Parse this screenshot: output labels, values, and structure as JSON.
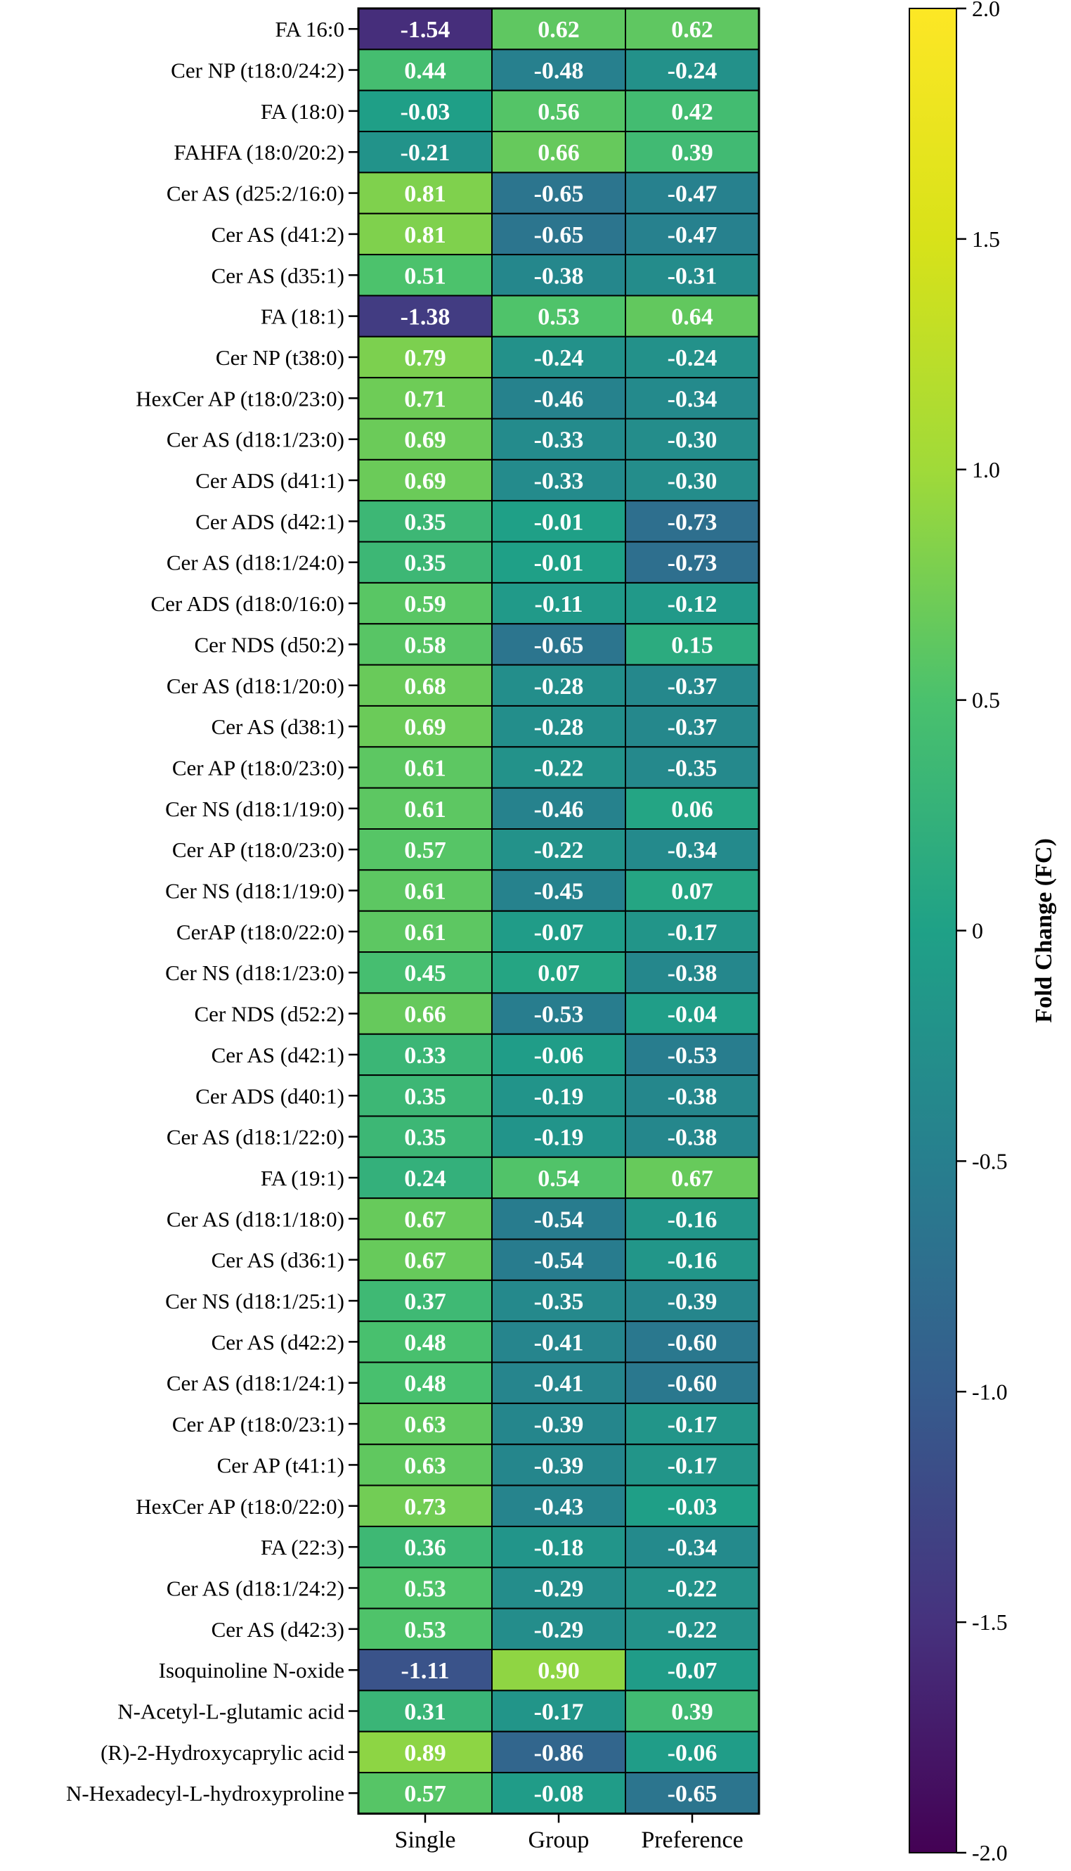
{
  "chart_data": {
    "type": "heatmap",
    "title": "",
    "columns": [
      "Single",
      "Group",
      "Preference"
    ],
    "rows": [
      "FA 16:0",
      "Cer NP (t18:0/24:2)",
      "FA (18:0)",
      "FAHFA (18:0/20:2)",
      "Cer AS (d25:2/16:0)",
      "Cer AS (d41:2)",
      "Cer AS (d35:1)",
      "FA (18:1)",
      "Cer NP (t38:0)",
      "HexCer AP (t18:0/23:0)",
      "Cer AS (d18:1/23:0)",
      "Cer ADS (d41:1)",
      "Cer ADS (d42:1)",
      "Cer AS (d18:1/24:0)",
      "Cer ADS (d18:0/16:0)",
      "Cer NDS (d50:2)",
      "Cer AS (d18:1/20:0)",
      "Cer AS (d38:1)",
      "Cer AP (t18:0/23:0)",
      "Cer NS (d18:1/19:0)",
      "Cer AP (t18:0/23:0)",
      "Cer NS (d18:1/19:0)",
      "CerAP (t18:0/22:0)",
      "Cer NS (d18:1/23:0)",
      "Cer NDS (d52:2)",
      "Cer AS (d42:1)",
      "Cer ADS (d40:1)",
      "Cer AS (d18:1/22:0)",
      "FA (19:1)",
      "Cer AS (d18:1/18:0)",
      "Cer AS (d36:1)",
      "Cer NS (d18:1/25:1)",
      "Cer AS (d42:2)",
      "Cer AS (d18:1/24:1)",
      "Cer AP (t18:0/23:1)",
      "Cer AP (t41:1)",
      "HexCer AP (t18:0/22:0)",
      "FA (22:3)",
      "Cer AS (d18:1/24:2)",
      "Cer AS (d42:3)",
      "Isoquinoline N-oxide",
      "N-Acetyl-L-glutamic acid",
      "(R)-2-Hydroxycaprylic acid",
      "N-Hexadecyl-L-hydroxyproline"
    ],
    "values": [
      [
        "-1.54",
        "0.62",
        "0.62"
      ],
      [
        "0.44",
        "-0.48",
        "-0.24"
      ],
      [
        "-0.03",
        "0.56",
        "0.42"
      ],
      [
        "-0.21",
        "0.66",
        "0.39"
      ],
      [
        "0.81",
        "-0.65",
        "-0.47"
      ],
      [
        "0.81",
        "-0.65",
        "-0.47"
      ],
      [
        "0.51",
        "-0.38",
        "-0.31"
      ],
      [
        "-1.38",
        "0.53",
        "0.64"
      ],
      [
        "0.79",
        "-0.24",
        "-0.24"
      ],
      [
        "0.71",
        "-0.46",
        "-0.34"
      ],
      [
        "0.69",
        "-0.33",
        "-0.30"
      ],
      [
        "0.69",
        "-0.33",
        "-0.30"
      ],
      [
        "0.35",
        "-0.01",
        "-0.73"
      ],
      [
        "0.35",
        "-0.01",
        "-0.73"
      ],
      [
        "0.59",
        "-0.11",
        "-0.12"
      ],
      [
        "0.58",
        "-0.65",
        "0.15"
      ],
      [
        "0.68",
        "-0.28",
        "-0.37"
      ],
      [
        "0.69",
        "-0.28",
        "-0.37"
      ],
      [
        "0.61",
        "-0.22",
        "-0.35"
      ],
      [
        "0.61",
        "-0.46",
        "0.06"
      ],
      [
        "0.57",
        "-0.22",
        "-0.34"
      ],
      [
        "0.61",
        "-0.45",
        "0.07"
      ],
      [
        "0.61",
        "-0.07",
        "-0.17"
      ],
      [
        "0.45",
        "0.07",
        "-0.38"
      ],
      [
        "0.66",
        "-0.53",
        "-0.04"
      ],
      [
        "0.33",
        "-0.06",
        "-0.53"
      ],
      [
        "0.35",
        "-0.19",
        "-0.38"
      ],
      [
        "0.35",
        "-0.19",
        "-0.38"
      ],
      [
        "0.24",
        "0.54",
        "0.67"
      ],
      [
        "0.67",
        "-0.54",
        "-0.16"
      ],
      [
        "0.67",
        "-0.54",
        "-0.16"
      ],
      [
        "0.37",
        "-0.35",
        "-0.39"
      ],
      [
        "0.48",
        "-0.41",
        "-0.60"
      ],
      [
        "0.48",
        "-0.41",
        "-0.60"
      ],
      [
        "0.63",
        "-0.39",
        "-0.17"
      ],
      [
        "0.63",
        "-0.39",
        "-0.17"
      ],
      [
        "0.73",
        "-0.43",
        "-0.03"
      ],
      [
        "0.36",
        "-0.18",
        "-0.34"
      ],
      [
        "0.53",
        "-0.29",
        "-0.22"
      ],
      [
        "0.53",
        "-0.29",
        "-0.22"
      ],
      [
        "-1.11",
        "0.90",
        "-0.07"
      ],
      [
        "0.31",
        "-0.17",
        "0.39"
      ],
      [
        "0.89",
        "-0.86",
        "-0.06"
      ],
      [
        "0.57",
        "-0.08",
        "-0.65"
      ]
    ],
    "colorbar": {
      "label": "Fold Change (FC)",
      "range": [
        -2.0,
        2.0
      ],
      "ticks": [
        "2.0",
        "1.5",
        "1.0",
        "0.5",
        "0",
        "-0.5",
        "-1.0",
        "-1.5",
        "-2.0"
      ],
      "colormap": "viridis"
    }
  }
}
